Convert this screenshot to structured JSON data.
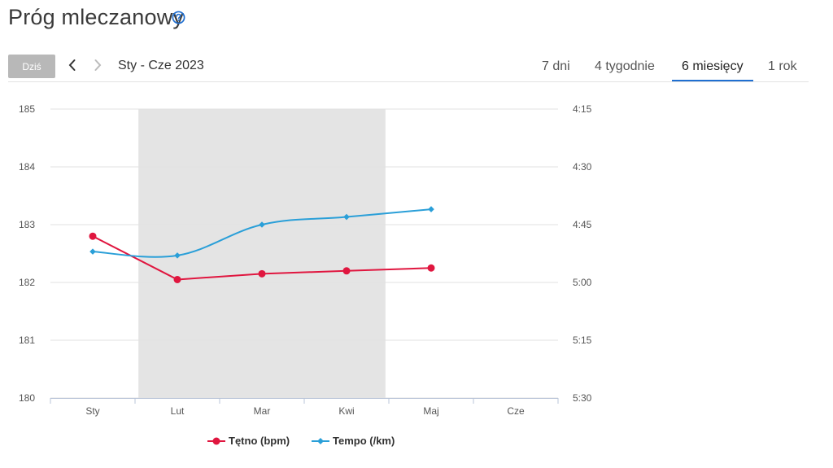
{
  "header": {
    "title": "Próg mleczanowy",
    "today_label": "Dziś",
    "date_range": "Sty - Cze 2023"
  },
  "tabs": [
    {
      "label": "7 dni",
      "active": false
    },
    {
      "label": "4 tygodnie",
      "active": false
    },
    {
      "label": "6 miesięcy",
      "active": true
    },
    {
      "label": "1 rok",
      "active": false
    }
  ],
  "icons": {
    "help": "help-circle-icon",
    "prev": "chevron-left-icon",
    "next": "chevron-right-icon"
  },
  "colors": {
    "heart_rate": "#e0163f",
    "pace": "#2a9fd8",
    "accent": "#1f6fd1",
    "shaded_band": "#e4e4e4"
  },
  "chart_data": {
    "type": "line",
    "categories": [
      "Sty",
      "Lut",
      "Mar",
      "Kwi",
      "Maj",
      "Cze"
    ],
    "y_left": {
      "ticks": [
        185,
        184,
        183,
        182,
        181,
        180
      ],
      "range": [
        180,
        185
      ]
    },
    "y_right": {
      "ticks": [
        "4:15",
        "4:30",
        "4:45",
        "5:00",
        "5:15",
        "5:30"
      ],
      "range_seconds": [
        255,
        330
      ]
    },
    "shaded_months": [
      "Lut",
      "Mar",
      "Kwi"
    ],
    "grid": true,
    "legend_position": "bottom",
    "series": [
      {
        "name": "Tętno (bpm)",
        "axis": "left",
        "marker": "circle",
        "values": [
          182.8,
          182.05,
          182.15,
          182.2,
          182.25,
          null
        ]
      },
      {
        "name": "Tempo (/km)",
        "axis": "right",
        "marker": "diamond",
        "values": [
          "4:52",
          "4:53",
          "4:45",
          "4:43",
          "4:41",
          null
        ],
        "values_seconds": [
          292,
          293,
          285,
          283,
          281,
          null
        ]
      }
    ]
  }
}
